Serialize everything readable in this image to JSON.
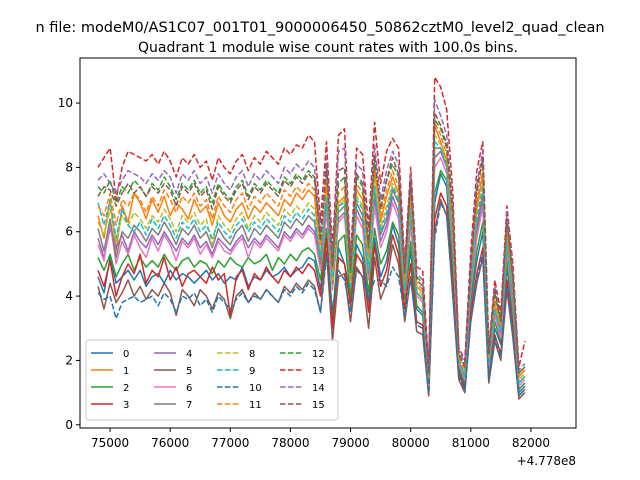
{
  "chart_data": {
    "type": "line",
    "suptitle": "n file: modeM0/AS1C07_001T01_9000006450_50862cztM0_level2_quad_clean",
    "title": "Quadrant 1 module wise count rates with 100.0s bins.",
    "xlabel": "",
    "ylabel": "",
    "x_offset_label": "+4.778e8",
    "xlim": [
      74500,
      82750
    ],
    "ylim": [
      -0.1,
      11.4
    ],
    "x_ticks": [
      75000,
      76000,
      77000,
      78000,
      79000,
      80000,
      81000,
      82000
    ],
    "y_ticks": [
      0,
      2,
      4,
      6,
      8,
      10
    ],
    "grid": false,
    "legend_position": "lower-left",
    "legend_columns": 4,
    "x_start": 74800,
    "x_step": 100,
    "series": [
      {
        "name": "0",
        "color": "#1f77b4",
        "dash": "solid",
        "values": [
          4.6,
          4.1,
          5.2,
          4.4,
          4.6,
          4.8,
          4.5,
          4.8,
          4.3,
          4.6,
          4.7,
          4.4,
          4.8,
          4.5,
          4.7,
          4.6,
          4.4,
          4.6,
          4.8,
          4.5,
          4.7,
          4.4,
          4.6,
          4.5,
          4.9,
          4.3,
          4.6,
          4.5,
          4.8,
          4.6,
          4.7,
          4.9,
          4.6,
          4.8,
          4.9,
          5.2,
          5.1,
          4.2,
          6.0,
          3.2,
          5.5,
          5.0,
          4.0,
          5.6,
          5.2,
          3.8,
          5.8,
          4.6,
          5.1,
          6.2,
          5.6,
          4.0,
          5.4,
          3.6,
          3.4,
          1.0,
          6.9,
          7.8,
          7.4,
          4.8,
          1.7,
          1.2,
          3.8,
          5.1,
          6.0,
          1.6,
          3.0,
          2.5,
          4.9,
          3.3,
          1.0,
          1.2
        ]
      },
      {
        "name": "1",
        "color": "#ff7f0e",
        "dash": "solid",
        "values": [
          6.5,
          5.8,
          7.0,
          5.4,
          6.8,
          6.3,
          7.2,
          6.9,
          6.4,
          7.0,
          6.6,
          7.1,
          6.5,
          6.9,
          6.7,
          6.4,
          7.0,
          6.6,
          6.8,
          6.2,
          6.9,
          6.5,
          6.3,
          6.7,
          6.9,
          6.4,
          6.8,
          6.6,
          6.9,
          6.7,
          6.5,
          7.0,
          6.8,
          7.2,
          7.0,
          7.3,
          7.1,
          5.2,
          7.5,
          4.6,
          6.9,
          7.1,
          4.2,
          7.3,
          7.0,
          5.2,
          7.9,
          6.3,
          7.1,
          7.7,
          7.2,
          4.4,
          7.0,
          4.3,
          4.1,
          1.5,
          9.3,
          8.8,
          8.2,
          6.0,
          2.0,
          1.6,
          4.5,
          6.7,
          7.8,
          2.0,
          3.8,
          3.0,
          5.9,
          4.2,
          1.5,
          1.7
        ]
      },
      {
        "name": "2",
        "color": "#2ca02c",
        "dash": "solid",
        "values": [
          5.2,
          4.8,
          5.3,
          4.6,
          5.0,
          5.3,
          4.8,
          5.2,
          4.9,
          5.1,
          4.9,
          5.3,
          5.0,
          4.8,
          5.1,
          5.2,
          4.9,
          5.1,
          5.0,
          4.7,
          5.1,
          4.9,
          5.2,
          5.0,
          4.9,
          5.2,
          5.0,
          5.1,
          5.3,
          4.8,
          5.2,
          5.0,
          5.3,
          5.1,
          5.4,
          5.5,
          5.3,
          4.5,
          6.1,
          3.3,
          5.7,
          5.9,
          3.9,
          5.9,
          5.6,
          4.1,
          6.1,
          5.0,
          5.4,
          6.3,
          5.9,
          3.9,
          5.7,
          3.7,
          3.5,
          1.1,
          7.2,
          7.9,
          7.6,
          5.1,
          1.8,
          1.3,
          4.0,
          5.4,
          6.3,
          1.7,
          3.2,
          2.6,
          5.1,
          3.5,
          1.1,
          1.3
        ]
      },
      {
        "name": "3",
        "color": "#d62728",
        "dash": "solid",
        "values": [
          4.8,
          4.3,
          5.1,
          4.0,
          4.6,
          5.0,
          4.7,
          5.3,
          4.4,
          4.8,
          4.6,
          5.2,
          4.5,
          4.9,
          4.3,
          4.7,
          4.8,
          4.6,
          4.4,
          4.9,
          4.5,
          4.7,
          3.4,
          4.6,
          4.8,
          4.2,
          4.7,
          4.5,
          4.9,
          4.6,
          4.4,
          4.8,
          4.6,
          4.9,
          4.7,
          5.0,
          4.8,
          4.0,
          5.8,
          3.0,
          5.2,
          5.0,
          3.7,
          5.3,
          5.0,
          3.5,
          5.6,
          4.3,
          4.8,
          5.9,
          5.3,
          3.6,
          5.0,
          3.2,
          3.1,
          0.9,
          6.4,
          7.2,
          6.8,
          4.4,
          1.6,
          1.1,
          3.5,
          4.7,
          5.5,
          1.4,
          2.8,
          2.2,
          4.5,
          3.0,
          0.9,
          1.1
        ]
      },
      {
        "name": "4",
        "color": "#9467bd",
        "dash": "solid",
        "values": [
          5.8,
          5.2,
          6.1,
          5.5,
          5.9,
          5.4,
          6.0,
          5.7,
          5.5,
          5.9,
          5.6,
          6.0,
          5.7,
          5.4,
          5.8,
          5.6,
          5.9,
          5.5,
          5.7,
          5.3,
          5.8,
          5.6,
          5.4,
          5.7,
          5.9,
          5.5,
          5.8,
          5.6,
          5.9,
          5.7,
          5.5,
          6.0,
          5.8,
          6.1,
          5.9,
          6.2,
          6.0,
          4.9,
          6.8,
          4.3,
          6.4,
          6.6,
          4.4,
          6.7,
          6.3,
          4.6,
          7.0,
          5.7,
          6.2,
          7.1,
          6.6,
          4.2,
          6.4,
          4.1,
          3.9,
          1.3,
          8.3,
          8.5,
          8.0,
          5.6,
          1.9,
          1.5,
          4.3,
          6.0,
          7.0,
          1.9,
          3.5,
          2.8,
          5.5,
          3.8,
          1.3,
          1.5
        ]
      },
      {
        "name": "5",
        "color": "#8c564b",
        "dash": "solid",
        "values": [
          4.3,
          3.6,
          4.4,
          3.8,
          4.1,
          4.5,
          4.0,
          4.3,
          3.9,
          4.2,
          4.0,
          4.4,
          4.1,
          3.4,
          4.2,
          4.0,
          3.7,
          4.2,
          4.0,
          3.6,
          4.1,
          3.9,
          3.3,
          4.0,
          4.2,
          3.8,
          4.1,
          3.9,
          4.2,
          4.0,
          3.8,
          4.3,
          4.1,
          4.4,
          4.2,
          4.5,
          4.3,
          3.5,
          5.4,
          2.6,
          4.6,
          4.7,
          3.2,
          4.9,
          4.6,
          3.0,
          5.2,
          3.9,
          4.4,
          5.6,
          5.0,
          3.2,
          4.6,
          2.9,
          2.8,
          0.9,
          6.0,
          7.0,
          6.5,
          4.0,
          1.4,
          1.0,
          3.2,
          4.4,
          5.2,
          1.3,
          2.6,
          2.0,
          4.2,
          2.7,
          0.8,
          1.0
        ]
      },
      {
        "name": "6",
        "color": "#e377c2",
        "dash": "solid",
        "values": [
          5.6,
          5.1,
          6.3,
          5.0,
          5.7,
          5.3,
          5.9,
          5.5,
          5.2,
          5.8,
          5.4,
          5.9,
          5.6,
          5.1,
          5.7,
          5.5,
          5.8,
          5.3,
          5.6,
          5.2,
          5.7,
          5.4,
          5.3,
          5.6,
          5.8,
          5.2,
          5.7,
          5.5,
          5.8,
          5.6,
          5.4,
          5.9,
          5.7,
          6.0,
          5.8,
          6.1,
          5.9,
          4.8,
          6.6,
          4.2,
          6.3,
          6.5,
          4.3,
          6.5,
          6.1,
          4.5,
          6.8,
          5.5,
          6.0,
          6.9,
          6.4,
          4.1,
          6.2,
          4.0,
          3.8,
          1.2,
          8.0,
          8.3,
          7.8,
          5.5,
          1.9,
          1.4,
          4.2,
          5.8,
          6.8,
          1.8,
          3.4,
          2.7,
          5.4,
          3.7,
          1.2,
          1.4
        ]
      },
      {
        "name": "7",
        "color": "#7f7f7f",
        "dash": "solid",
        "values": [
          6.1,
          5.4,
          6.4,
          5.2,
          6.0,
          5.8,
          6.2,
          6.0,
          5.7,
          6.1,
          5.9,
          6.3,
          6.0,
          5.6,
          6.1,
          5.9,
          6.2,
          5.8,
          6.0,
          5.5,
          6.1,
          5.8,
          5.6,
          6.0,
          6.2,
          5.7,
          6.1,
          5.9,
          6.2,
          6.0,
          5.8,
          6.3,
          6.1,
          6.4,
          6.2,
          6.5,
          6.3,
          5.0,
          7.0,
          4.4,
          6.6,
          6.8,
          4.3,
          6.9,
          6.5,
          4.7,
          7.3,
          5.9,
          6.4,
          7.3,
          6.9,
          4.2,
          6.6,
          4.1,
          3.9,
          1.3,
          8.6,
          8.6,
          8.1,
          5.8,
          2.0,
          1.5,
          4.4,
          6.2,
          7.2,
          1.9,
          3.6,
          2.9,
          5.6,
          3.9,
          1.3,
          1.5
        ]
      },
      {
        "name": "8",
        "color": "#bcbd22",
        "dash": "dashed",
        "values": [
          6.3,
          5.9,
          6.7,
          5.7,
          6.5,
          6.2,
          6.6,
          6.4,
          6.1,
          6.5,
          6.3,
          6.7,
          6.4,
          6.0,
          6.5,
          6.3,
          6.6,
          6.2,
          6.4,
          5.6,
          6.5,
          6.2,
          6.0,
          6.4,
          6.6,
          6.1,
          6.5,
          6.3,
          6.6,
          6.4,
          6.2,
          6.7,
          6.5,
          6.8,
          6.6,
          6.9,
          6.7,
          5.3,
          7.2,
          4.5,
          6.8,
          7.0,
          4.3,
          7.1,
          6.8,
          4.9,
          7.6,
          6.1,
          6.8,
          7.5,
          7.1,
          4.3,
          6.8,
          4.2,
          4.0,
          1.4,
          9.0,
          8.7,
          8.1,
          5.9,
          2.0,
          1.6,
          4.5,
          6.5,
          7.5,
          2.0,
          3.7,
          3.0,
          5.8,
          4.1,
          1.4,
          1.6
        ]
      },
      {
        "name": "9",
        "color": "#17becf",
        "dash": "dashed",
        "values": [
          6.9,
          6.2,
          7.0,
          5.8,
          6.7,
          6.2,
          6.0,
          6.3,
          5.9,
          6.4,
          6.1,
          6.5,
          6.2,
          5.8,
          6.3,
          6.1,
          6.4,
          6.0,
          6.2,
          5.8,
          6.3,
          6.0,
          5.8,
          6.2,
          6.4,
          6.0,
          6.3,
          6.1,
          6.4,
          6.2,
          6.0,
          6.5,
          6.3,
          6.6,
          6.4,
          6.7,
          6.5,
          5.2,
          7.1,
          4.6,
          6.8,
          6.9,
          4.2,
          7.0,
          6.7,
          4.8,
          7.4,
          6.0,
          6.6,
          7.4,
          7.0,
          4.2,
          6.7,
          4.1,
          3.9,
          1.3,
          8.8,
          8.6,
          8.0,
          5.8,
          2.0,
          1.5,
          4.4,
          6.4,
          7.4,
          1.9,
          3.6,
          2.9,
          5.7,
          4.0,
          1.3,
          1.5
        ]
      },
      {
        "name": "10",
        "color": "#1f77b4",
        "dash": "dashed",
        "values": [
          4.1,
          3.9,
          4.0,
          3.3,
          3.8,
          3.9,
          4.0,
          3.8,
          3.9,
          4.0,
          3.7,
          4.1,
          3.9,
          3.5,
          4.0,
          3.9,
          4.1,
          3.7,
          3.9,
          3.5,
          4.0,
          3.8,
          3.6,
          3.9,
          4.1,
          3.8,
          4.0,
          3.9,
          4.2,
          4.0,
          3.8,
          4.2,
          4.0,
          4.3,
          4.1,
          4.4,
          4.2,
          3.5,
          5.2,
          3.6,
          4.8,
          4.5,
          3.5,
          4.8,
          4.6,
          3.9,
          4.5,
          4.5,
          4.3,
          4.9,
          4.6,
          3.4,
          4.5,
          3.1,
          3.0,
          1.0,
          5.8,
          6.9,
          6.5,
          4.1,
          1.5,
          1.0,
          3.3,
          4.5,
          5.3,
          1.4,
          2.7,
          2.1,
          4.3,
          2.8,
          0.9,
          1.1
        ]
      },
      {
        "name": "11",
        "color": "#ff7f0e",
        "dash": "dashed",
        "values": [
          6.8,
          6.5,
          7.2,
          6.2,
          7.0,
          6.8,
          7.2,
          7.0,
          6.6,
          7.1,
          6.8,
          7.3,
          7.0,
          6.6,
          7.1,
          6.9,
          7.2,
          6.8,
          7.0,
          6.4,
          7.1,
          6.8,
          6.6,
          7.0,
          7.2,
          6.7,
          7.1,
          6.9,
          7.2,
          7.0,
          6.8,
          7.3,
          7.1,
          7.4,
          7.2,
          7.5,
          7.3,
          5.6,
          7.8,
          4.8,
          7.2,
          7.4,
          4.5,
          7.5,
          7.2,
          5.3,
          8.0,
          6.5,
          7.3,
          7.9,
          7.4,
          4.5,
          7.2,
          4.4,
          4.2,
          1.5,
          9.4,
          9.0,
          8.4,
          6.2,
          2.1,
          1.7,
          4.7,
          6.9,
          8.0,
          2.1,
          3.9,
          3.1,
          6.1,
          4.3,
          1.5,
          1.7
        ]
      },
      {
        "name": "12",
        "color": "#2ca02c",
        "dash": "dashed",
        "values": [
          7.4,
          7.2,
          7.6,
          6.9,
          7.4,
          7.2,
          7.6,
          7.4,
          7.1,
          7.5,
          7.3,
          7.7,
          7.4,
          7.0,
          7.5,
          7.3,
          7.6,
          7.2,
          7.4,
          6.9,
          7.5,
          7.2,
          7.0,
          7.4,
          7.6,
          7.1,
          7.5,
          7.3,
          7.6,
          7.4,
          7.2,
          7.7,
          7.5,
          7.8,
          7.6,
          7.9,
          7.7,
          5.8,
          8.0,
          5.0,
          7.5,
          7.7,
          4.7,
          7.7,
          7.4,
          5.5,
          8.2,
          6.8,
          7.6,
          8.1,
          7.7,
          4.7,
          7.5,
          4.6,
          4.4,
          1.6,
          9.5,
          9.2,
          8.6,
          6.5,
          2.2,
          1.8,
          4.9,
          7.2,
          8.3,
          2.2,
          4.1,
          3.2,
          6.3,
          4.5,
          1.6,
          1.8
        ]
      },
      {
        "name": "13",
        "color": "#d62728",
        "dash": "dashed",
        "values": [
          8.0,
          8.3,
          8.6,
          7.0,
          8.0,
          8.5,
          8.4,
          8.3,
          8.2,
          8.4,
          8.1,
          8.5,
          8.2,
          7.7,
          8.3,
          8.1,
          8.4,
          8.0,
          8.2,
          7.6,
          8.3,
          8.0,
          7.8,
          8.2,
          8.4,
          7.9,
          8.3,
          8.1,
          8.5,
          8.3,
          8.1,
          8.6,
          8.4,
          8.7,
          8.6,
          9.0,
          8.8,
          6.3,
          8.8,
          5.5,
          9.0,
          9.2,
          5.2,
          8.6,
          8.4,
          6.1,
          9.4,
          7.5,
          8.5,
          8.9,
          8.6,
          5.0,
          8.0,
          4.9,
          4.8,
          1.8,
          10.8,
          10.5,
          9.8,
          7.2,
          2.4,
          2.0,
          5.4,
          7.9,
          8.8,
          2.4,
          4.5,
          3.5,
          6.8,
          5.0,
          1.8,
          2.6
        ]
      },
      {
        "name": "14",
        "color": "#9467bd",
        "dash": "dashed",
        "values": [
          7.6,
          7.8,
          7.5,
          7.2,
          7.6,
          7.9,
          7.8,
          7.7,
          7.5,
          7.8,
          7.6,
          7.9,
          7.7,
          7.2,
          7.8,
          7.6,
          7.9,
          7.5,
          7.7,
          7.2,
          7.8,
          7.5,
          7.3,
          7.7,
          7.9,
          7.4,
          7.8,
          7.6,
          7.9,
          7.7,
          7.5,
          8.0,
          7.8,
          8.1,
          7.9,
          8.2,
          8.0,
          6.0,
          8.3,
          5.2,
          8.5,
          8.6,
          5.0,
          8.1,
          7.9,
          5.7,
          8.7,
          7.0,
          7.9,
          8.5,
          8.1,
          4.9,
          7.8,
          4.7,
          4.5,
          1.7,
          10.1,
          9.6,
          9.0,
          6.8,
          2.3,
          1.9,
          5.1,
          7.5,
          8.5,
          2.3,
          4.3,
          3.3,
          6.6,
          4.7,
          1.7,
          1.9
        ]
      },
      {
        "name": "15",
        "color": "#8c564b",
        "dash": "dashed",
        "values": [
          7.1,
          7.4,
          7.3,
          6.8,
          7.2,
          7.5,
          7.2,
          7.4,
          7.1,
          7.4,
          7.2,
          7.5,
          7.3,
          6.8,
          7.4,
          7.2,
          7.5,
          7.1,
          7.3,
          6.7,
          7.4,
          7.1,
          6.9,
          7.3,
          7.5,
          7.0,
          7.4,
          7.2,
          7.5,
          7.3,
          7.1,
          7.6,
          7.4,
          7.7,
          7.5,
          7.8,
          7.6,
          5.7,
          8.1,
          4.9,
          7.9,
          8.0,
          4.8,
          7.8,
          7.5,
          5.6,
          8.4,
          6.7,
          7.6,
          8.3,
          7.8,
          4.7,
          7.6,
          4.5,
          4.3,
          1.6,
          9.7,
          9.3,
          8.7,
          6.6,
          2.2,
          1.8,
          4.9,
          7.3,
          8.3,
          2.2,
          4.2,
          3.2,
          6.4,
          4.6,
          1.6,
          1.8
        ]
      }
    ]
  }
}
